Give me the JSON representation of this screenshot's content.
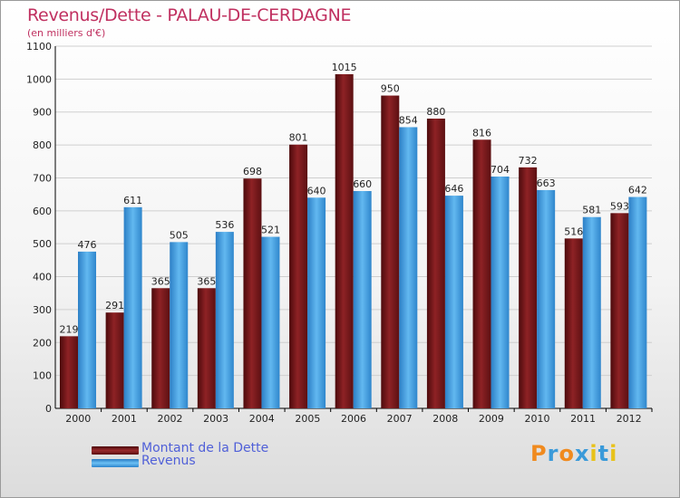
{
  "chart_data": {
    "type": "bar",
    "title": "Revenus/Dette - PALAU-DE-CERDAGNE",
    "subtitle": "(en milliers d'€)",
    "categories": [
      "2000",
      "2001",
      "2002",
      "2003",
      "2004",
      "2005",
      "2006",
      "2007",
      "2008",
      "2009",
      "2010",
      "2011",
      "2012"
    ],
    "series": [
      {
        "name": "Montant de la Dette",
        "color": "#7a1618",
        "values": [
          219,
          291,
          365,
          365,
          698,
          801,
          1015,
          950,
          880,
          816,
          732,
          516,
          593
        ]
      },
      {
        "name": "Revenus",
        "color": "#4aa3e6",
        "values": [
          476,
          611,
          505,
          536,
          521,
          640,
          660,
          854,
          646,
          704,
          663,
          581,
          642
        ]
      }
    ],
    "ylim": [
      0,
      1100
    ],
    "yticks": [
      0,
      100,
      200,
      300,
      400,
      500,
      600,
      700,
      800,
      900,
      1000,
      1100
    ],
    "grid": true,
    "legend": "bottom-left"
  },
  "logo": {
    "text": "Proxiti",
    "letters": [
      "P",
      "r",
      "o",
      "x",
      "i",
      "t",
      "i"
    ],
    "colors": [
      "#f08a1e",
      "#3a9ad9",
      "#f08a1e",
      "#3a9ad9",
      "#e8c21a",
      "#3a9ad9",
      "#e8c21a"
    ]
  }
}
